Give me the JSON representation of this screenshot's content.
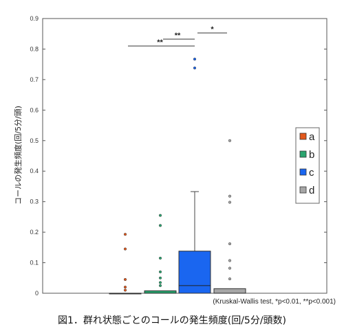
{
  "chart_data": {
    "type": "box",
    "ylabel": "コールの発生頻度(回/5分/頭)",
    "ylim": [
      0,
      0.9
    ],
    "yticks": [
      "0",
      "0.1",
      "0.2",
      "0.3",
      "0.4",
      "0.5",
      "0.6",
      "0.7",
      "0.8",
      "0.9"
    ],
    "grid": false,
    "legend_position": "right",
    "series": [
      {
        "name": "a",
        "color": "#e2581c",
        "q1": 0,
        "median": 0,
        "q3": 0,
        "whisker_low": 0,
        "whisker_high": 0,
        "outliers": [
          0.01,
          0.02,
          0.045,
          0.145,
          0.193
        ]
      },
      {
        "name": "b",
        "color": "#2aa56f",
        "q1": 0,
        "median": 0,
        "q3": 0.008,
        "whisker_low": 0,
        "whisker_high": 0.008,
        "outliers": [
          0.025,
          0.035,
          0.05,
          0.07,
          0.115,
          0.222,
          0.255
        ]
      },
      {
        "name": "c",
        "color": "#1a66f0",
        "q1": 0,
        "median": 0.025,
        "q3": 0.138,
        "whisker_low": 0,
        "whisker_high": 0.333,
        "outliers": [
          0.738,
          0.767
        ]
      },
      {
        "name": "d",
        "color": "#a6a6a6",
        "q1": 0,
        "median": 0,
        "q3": 0.015,
        "whisker_low": 0,
        "whisker_high": 0.015,
        "outliers": [
          0.047,
          0.082,
          0.107,
          0.162,
          0.298,
          0.318,
          0.5
        ]
      }
    ],
    "significance": [
      {
        "from": "a",
        "to": "c",
        "label": "**"
      },
      {
        "from": "b",
        "to": "c",
        "label": "**"
      },
      {
        "from": "c",
        "to": "d",
        "label": "*"
      }
    ]
  },
  "note": "(Kruskal-Wallis test, *p<0.01, **p<0.001)",
  "caption": "図1．群れ状態ごとのコールの発生頻度(回/5分/頭数)"
}
